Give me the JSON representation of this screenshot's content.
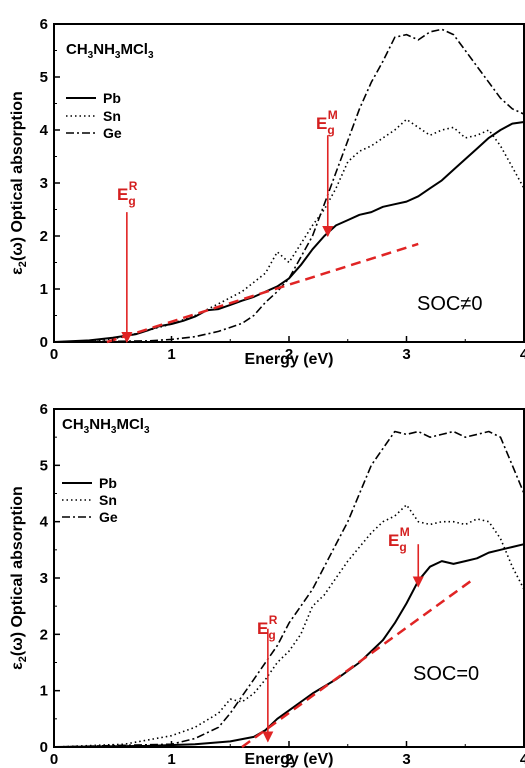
{
  "colors": {
    "curve": "#000000",
    "annotation_red": "#e02424",
    "annotation_text": "#d42020",
    "frame": "#000000",
    "background": "#ffffff"
  },
  "chart_data": [
    {
      "type": "line",
      "id": "top",
      "compound": {
        "pre": "CH",
        "s1": "3",
        "mid": "NH",
        "s2": "3",
        "post": "MCl",
        "s3": "3"
      },
      "ylabel": {
        "pre": "ε",
        "sub": "2",
        "post": "(ω) Optical absorption"
      },
      "xlabel": "Energy (eV)",
      "xlim": [
        0,
        4
      ],
      "ylim": [
        0,
        6
      ],
      "xticks": [
        "0",
        "1",
        "2",
        "3",
        "4"
      ],
      "yticks": [
        "0",
        "1",
        "2",
        "3",
        "4",
        "5",
        "6"
      ],
      "grid": false,
      "legend_position": "top-left",
      "soc_label": "SOC≠0",
      "series": [
        {
          "name": "Pb",
          "style": "solid",
          "x": [
            0,
            0.3,
            0.5,
            0.7,
            0.8,
            0.9,
            1.0,
            1.1,
            1.2,
            1.3,
            1.4,
            1.5,
            1.6,
            1.7,
            1.8,
            1.9,
            2.0,
            2.1,
            2.2,
            2.3,
            2.4,
            2.5,
            2.6,
            2.7,
            2.8,
            2.9,
            3.0,
            3.1,
            3.2,
            3.3,
            3.4,
            3.5,
            3.6,
            3.7,
            3.8,
            3.9,
            4.0
          ],
          "y": [
            0,
            0.03,
            0.08,
            0.15,
            0.22,
            0.3,
            0.34,
            0.4,
            0.48,
            0.6,
            0.62,
            0.7,
            0.78,
            0.85,
            0.95,
            1.05,
            1.2,
            1.45,
            1.75,
            2.0,
            2.2,
            2.3,
            2.4,
            2.45,
            2.55,
            2.6,
            2.65,
            2.75,
            2.9,
            3.05,
            3.25,
            3.45,
            3.65,
            3.85,
            4.0,
            4.12,
            4.15
          ]
        },
        {
          "name": "Sn",
          "style": "dotted",
          "x": [
            0,
            0.4,
            0.6,
            0.8,
            1.0,
            1.2,
            1.4,
            1.6,
            1.8,
            1.9,
            2.0,
            2.1,
            2.2,
            2.3,
            2.4,
            2.5,
            2.6,
            2.7,
            2.8,
            2.9,
            3.0,
            3.1,
            3.2,
            3.3,
            3.4,
            3.5,
            3.6,
            3.7,
            3.8,
            3.9,
            4.0
          ],
          "y": [
            0,
            0.03,
            0.1,
            0.22,
            0.34,
            0.5,
            0.72,
            0.95,
            1.3,
            1.7,
            1.5,
            1.85,
            2.2,
            2.5,
            2.9,
            3.4,
            3.6,
            3.7,
            3.85,
            4.0,
            4.2,
            4.05,
            3.9,
            4.0,
            4.05,
            3.85,
            3.9,
            4.0,
            3.7,
            3.3,
            2.9
          ]
        },
        {
          "name": "Ge",
          "style": "dashdot",
          "x": [
            0,
            0.8,
            1.0,
            1.2,
            1.4,
            1.6,
            1.7,
            1.8,
            1.9,
            2.0,
            2.1,
            2.2,
            2.3,
            2.4,
            2.5,
            2.6,
            2.7,
            2.8,
            2.9,
            3.0,
            3.1,
            3.2,
            3.3,
            3.4,
            3.5,
            3.6,
            3.7,
            3.8,
            3.9,
            4.0
          ],
          "y": [
            0,
            0.02,
            0.05,
            0.1,
            0.2,
            0.35,
            0.5,
            0.75,
            0.95,
            1.2,
            1.6,
            2.0,
            2.6,
            3.2,
            3.8,
            4.4,
            4.9,
            5.3,
            5.75,
            5.8,
            5.7,
            5.85,
            5.9,
            5.8,
            5.5,
            5.2,
            4.9,
            4.6,
            4.4,
            4.3
          ]
        }
      ],
      "annotations": {
        "fit_line": {
          "x": [
            0.45,
            3.1
          ],
          "y": [
            0,
            1.85
          ]
        },
        "eg_r": {
          "label": "E",
          "sup": "R",
          "sub": "g",
          "x": 0.62,
          "y_from": 2.45,
          "y_to": 0
        },
        "eg_m": {
          "label": "E",
          "sup": "M",
          "sub": "g",
          "x": 2.33,
          "y_from": 3.9,
          "y_to": 2.0
        }
      }
    },
    {
      "type": "line",
      "id": "bottom",
      "compound": {
        "pre": "CH",
        "s1": "3",
        "mid": "NH",
        "s2": "3",
        "post": "MCl",
        "s3": "3"
      },
      "ylabel": {
        "pre": "ε",
        "sub": "2",
        "post": "(ω) Optical absorption"
      },
      "xlabel": "Energy (eV)",
      "xlim": [
        0,
        4
      ],
      "ylim": [
        0,
        6
      ],
      "xticks": [
        "0",
        "1",
        "2",
        "3",
        "4"
      ],
      "yticks": [
        "0",
        "1",
        "2",
        "3",
        "4",
        "5",
        "6"
      ],
      "grid": false,
      "legend_position": "top-left",
      "soc_label": "SOC=0",
      "series": [
        {
          "name": "Pb",
          "style": "solid",
          "x": [
            0,
            0.8,
            1.2,
            1.5,
            1.7,
            1.8,
            1.9,
            2.0,
            2.2,
            2.4,
            2.6,
            2.8,
            2.9,
            3.0,
            3.1,
            3.2,
            3.3,
            3.4,
            3.5,
            3.6,
            3.7,
            3.8,
            3.9,
            4.0
          ],
          "y": [
            0,
            0.02,
            0.05,
            0.1,
            0.18,
            0.3,
            0.5,
            0.65,
            0.95,
            1.2,
            1.5,
            1.9,
            2.2,
            2.55,
            2.95,
            3.2,
            3.3,
            3.25,
            3.3,
            3.35,
            3.45,
            3.5,
            3.55,
            3.6
          ]
        },
        {
          "name": "Sn",
          "style": "dotted",
          "x": [
            0,
            0.6,
            1.0,
            1.2,
            1.4,
            1.5,
            1.6,
            1.7,
            1.8,
            1.9,
            2.0,
            2.1,
            2.2,
            2.3,
            2.4,
            2.5,
            2.6,
            2.7,
            2.8,
            2.9,
            3.0,
            3.1,
            3.2,
            3.3,
            3.4,
            3.5,
            3.6,
            3.7,
            3.8,
            3.9,
            4.0
          ],
          "y": [
            0,
            0.05,
            0.2,
            0.35,
            0.6,
            0.85,
            0.8,
            0.95,
            1.2,
            1.5,
            1.7,
            2.0,
            2.5,
            2.7,
            3.0,
            3.3,
            3.55,
            3.8,
            4.0,
            4.1,
            4.3,
            4.0,
            3.95,
            4.0,
            4.0,
            3.95,
            4.05,
            4.0,
            3.7,
            3.2,
            2.8
          ]
        },
        {
          "name": "Ge",
          "style": "dashdot",
          "x": [
            0,
            1.0,
            1.2,
            1.4,
            1.5,
            1.6,
            1.7,
            1.8,
            1.9,
            2.0,
            2.1,
            2.2,
            2.3,
            2.4,
            2.5,
            2.6,
            2.7,
            2.8,
            2.9,
            3.0,
            3.1,
            3.2,
            3.3,
            3.4,
            3.5,
            3.6,
            3.7,
            3.8,
            3.9,
            4.0
          ],
          "y": [
            0,
            0.05,
            0.15,
            0.35,
            0.6,
            0.9,
            1.2,
            1.5,
            1.8,
            2.2,
            2.5,
            2.8,
            3.2,
            3.6,
            4.0,
            4.5,
            5.0,
            5.3,
            5.6,
            5.55,
            5.6,
            5.5,
            5.55,
            5.6,
            5.5,
            5.55,
            5.6,
            5.5,
            5.0,
            4.5
          ]
        }
      ],
      "annotations": {
        "fit_line": {
          "x": [
            1.6,
            3.55
          ],
          "y": [
            0,
            2.95
          ]
        },
        "eg_r": {
          "label": "E",
          "sup": "R",
          "sub": "g",
          "x": 1.82,
          "y_from": 2.1,
          "y_to": 0.1
        },
        "eg_m": {
          "label": "E",
          "sup": "M",
          "sub": "g",
          "x": 3.1,
          "y_from": 3.6,
          "y_to": 2.85
        }
      }
    }
  ]
}
